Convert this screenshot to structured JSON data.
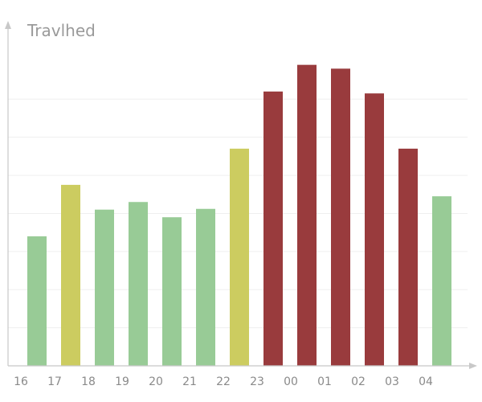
{
  "chart_data": {
    "type": "bar",
    "title": "",
    "ylabel": "Travlhed",
    "xlabel": "",
    "categories": [
      "16",
      "17",
      "18",
      "19",
      "20",
      "21",
      "22",
      "23",
      "00",
      "01",
      "02",
      "03",
      "04"
    ],
    "values": [
      34,
      47.5,
      41,
      43,
      39,
      41.2,
      57,
      72,
      79,
      78,
      71.5,
      57,
      44.5
    ],
    "colors": [
      "#98cb96",
      "#cccc60",
      "#98cb96",
      "#98cb96",
      "#98cb96",
      "#98cb96",
      "#cccc60",
      "#993b3d",
      "#993b3d",
      "#993b3d",
      "#993b3d",
      "#993b3d",
      "#98cb96"
    ],
    "ylim": [
      0,
      88
    ],
    "grid": true,
    "legend": "none"
  }
}
